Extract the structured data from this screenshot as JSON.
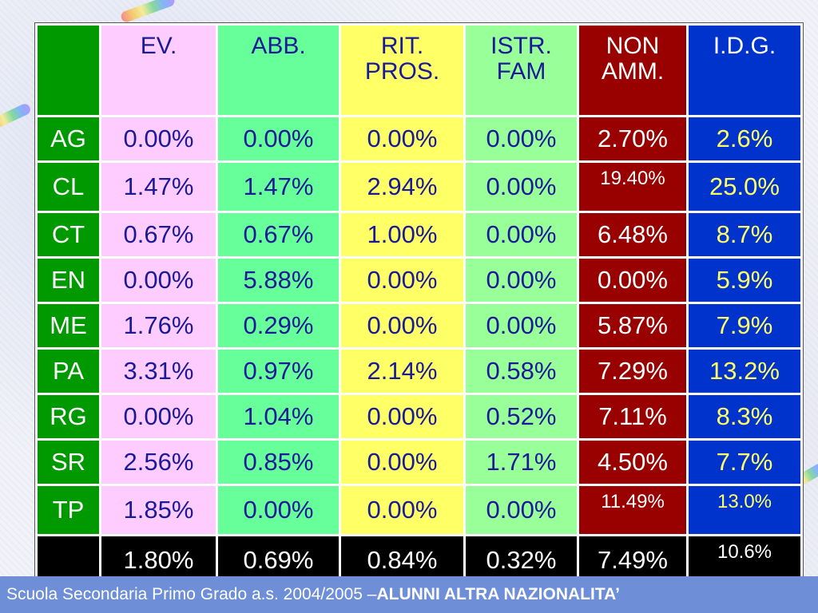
{
  "table": {
    "headers": [
      {
        "line1": "EV.",
        "line2": ""
      },
      {
        "line1": "ABB.",
        "line2": ""
      },
      {
        "line1": "RIT.",
        "line2": "PROS."
      },
      {
        "line1": "ISTR.",
        "line2": "FAM"
      },
      {
        "line1": "NON",
        "line2": "AMM."
      },
      {
        "line1": "I.D.G.",
        "line2": ""
      }
    ],
    "rows": [
      {
        "prov": "AG",
        "ev": "0.00%",
        "abb": "0.00%",
        "rit": "0.00%",
        "ist": "0.00%",
        "non": "2.70%",
        "idg": "2.6%"
      },
      {
        "prov": "CL",
        "ev": "1.47%",
        "abb": "1.47%",
        "rit": "2.94%",
        "ist": "0.00%",
        "non": "19.40%",
        "idg": "25.0%"
      },
      {
        "prov": "CT",
        "ev": "0.67%",
        "abb": "0.67%",
        "rit": "1.00%",
        "ist": "0.00%",
        "non": "6.48%",
        "idg": "8.7%"
      },
      {
        "prov": "EN",
        "ev": "0.00%",
        "abb": "5.88%",
        "rit": "0.00%",
        "ist": "0.00%",
        "non": "0.00%",
        "idg": "5.9%"
      },
      {
        "prov": "ME",
        "ev": "1.76%",
        "abb": "0.29%",
        "rit": "0.00%",
        "ist": "0.00%",
        "non": "5.87%",
        "idg": "7.9%"
      },
      {
        "prov": "PA",
        "ev": "3.31%",
        "abb": "0.97%",
        "rit": "2.14%",
        "ist": "0.58%",
        "non": "7.29%",
        "idg": "13.2%"
      },
      {
        "prov": "RG",
        "ev": "0.00%",
        "abb": "1.04%",
        "rit": "0.00%",
        "ist": "0.52%",
        "non": "7.11%",
        "idg": "8.3%"
      },
      {
        "prov": "SR",
        "ev": "2.56%",
        "abb": "0.85%",
        "rit": "0.00%",
        "ist": "1.71%",
        "non": "4.50%",
        "idg": "7.7%"
      },
      {
        "prov": "TP",
        "ev": "1.85%",
        "abb": "0.00%",
        "rit": "0.00%",
        "ist": "0.00%",
        "non": "11.49%",
        "idg": "13.0%"
      }
    ],
    "totals": {
      "ev": "1.80%",
      "abb": "0.69%",
      "rit": "0.84%",
      "ist": "0.32%",
      "non": "7.49%",
      "idg": "10.6%"
    }
  },
  "footer": {
    "prefix": "Scuola Secondaria Primo Grado a.s. 2004/2005 –",
    "highlight": "ALUNNI ALTRA NAZIONALITA’"
  },
  "colors": {
    "ev": "#ffccff",
    "abb": "#66ff99",
    "rit": "#ffff66",
    "ist": "#99ff99",
    "non": "#990000",
    "idg": "#0033cc",
    "prov": "#009900",
    "totals": "#000000",
    "footer_bar": "#6e8fd8"
  }
}
